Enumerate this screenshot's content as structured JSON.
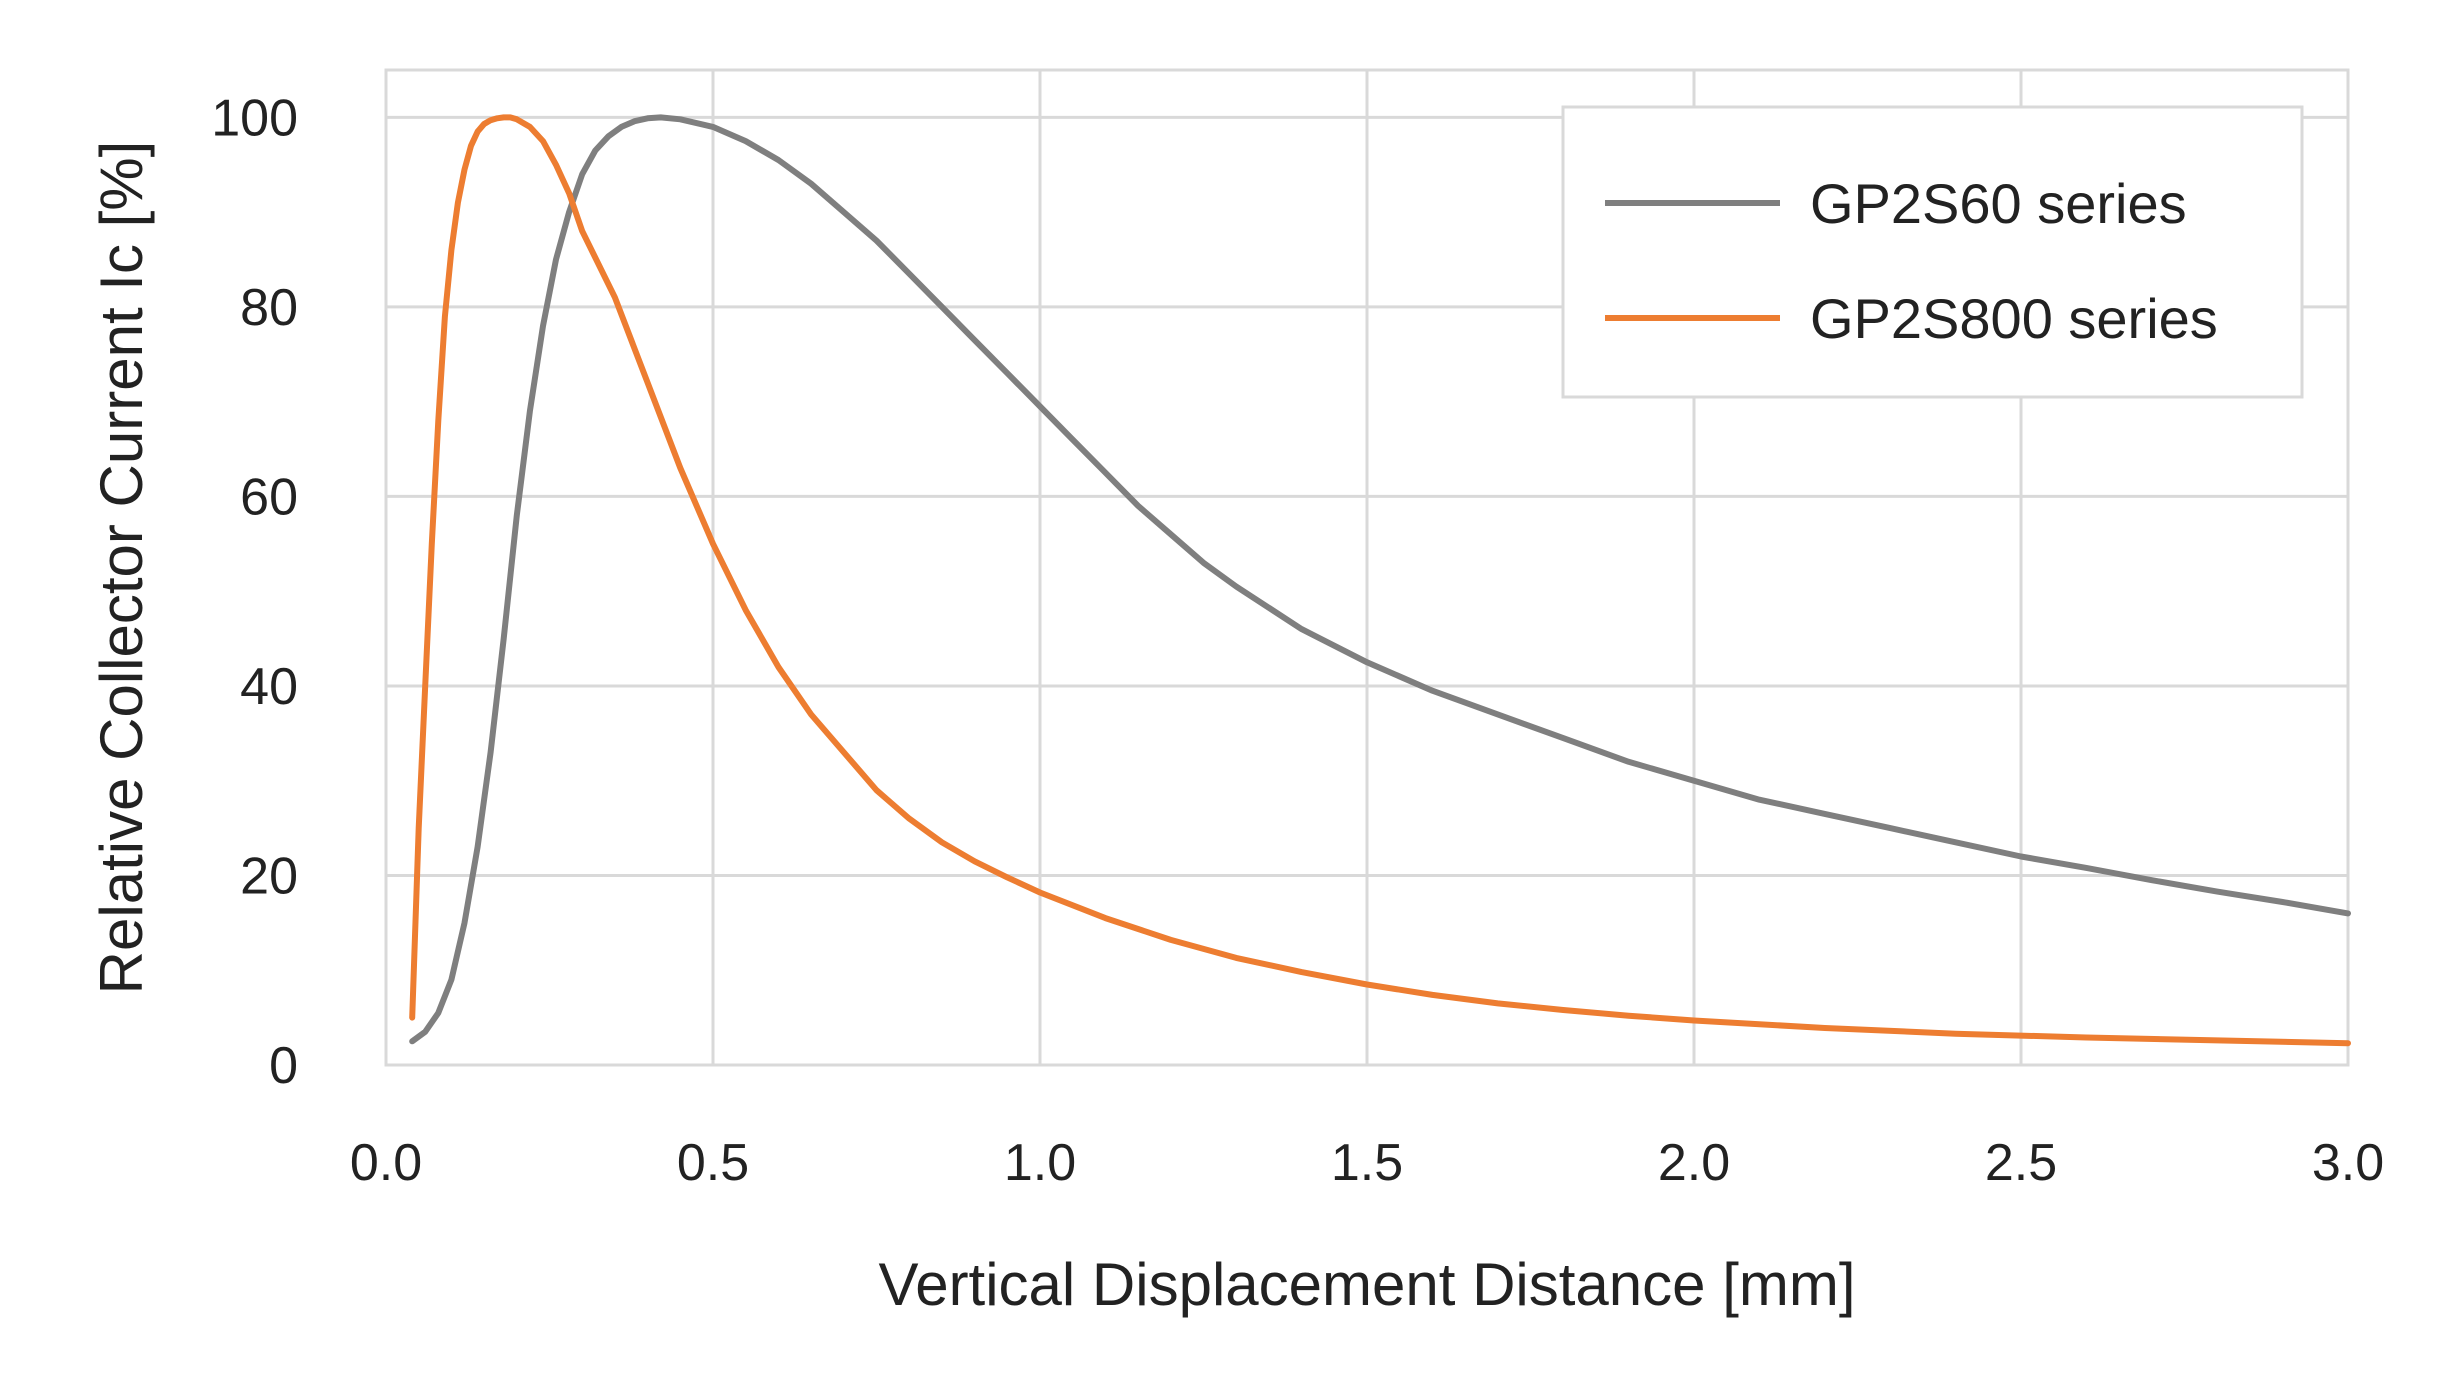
{
  "chart_data": {
    "type": "line",
    "title": "",
    "xlabel": "Vertical Displacement Distance [mm]",
    "ylabel": "Relative Collector Current Ic [%]",
    "xlim": [
      0.0,
      3.0
    ],
    "ylim": [
      0,
      105
    ],
    "x_ticks": [
      "0.0",
      "0.5",
      "1.0",
      "1.5",
      "2.0",
      "2.5",
      "3.0"
    ],
    "y_ticks": [
      "0",
      "20",
      "40",
      "60",
      "80",
      "100"
    ],
    "grid": true,
    "legend_position": "top-right",
    "series": [
      {
        "name": "GP2S60 series",
        "color": "#7f7f7f",
        "x": [
          0.04,
          0.06,
          0.08,
          0.1,
          0.12,
          0.14,
          0.16,
          0.18,
          0.2,
          0.22,
          0.24,
          0.26,
          0.28,
          0.3,
          0.32,
          0.34,
          0.36,
          0.38,
          0.4,
          0.42,
          0.45,
          0.5,
          0.55,
          0.6,
          0.65,
          0.7,
          0.75,
          0.8,
          0.85,
          0.9,
          0.95,
          1.0,
          1.05,
          1.1,
          1.15,
          1.2,
          1.25,
          1.3,
          1.4,
          1.5,
          1.6,
          1.7,
          1.8,
          1.9,
          2.0,
          2.1,
          2.2,
          2.3,
          2.4,
          2.5,
          2.6,
          2.7,
          2.8,
          2.9,
          3.0
        ],
        "values": [
          2.5,
          3.5,
          5.5,
          9,
          15,
          23,
          33,
          45,
          58,
          69,
          78,
          85,
          90,
          94,
          96.5,
          98,
          99,
          99.6,
          99.9,
          100,
          99.8,
          99,
          97.5,
          95.5,
          93,
          90,
          87,
          83.5,
          80,
          76.5,
          73,
          69.5,
          66,
          62.5,
          59,
          56,
          53,
          50.5,
          46,
          42.5,
          39.5,
          37,
          34.5,
          32,
          30,
          28,
          26.5,
          25,
          23.5,
          22,
          20.8,
          19.5,
          18.3,
          17.2,
          16
        ]
      },
      {
        "name": "GP2S800 series",
        "color": "#ed7d31",
        "x": [
          0.04,
          0.05,
          0.06,
          0.07,
          0.08,
          0.09,
          0.1,
          0.11,
          0.12,
          0.13,
          0.14,
          0.15,
          0.16,
          0.17,
          0.18,
          0.19,
          0.2,
          0.22,
          0.24,
          0.26,
          0.28,
          0.3,
          0.35,
          0.4,
          0.45,
          0.5,
          0.55,
          0.6,
          0.65,
          0.7,
          0.75,
          0.8,
          0.85,
          0.9,
          0.95,
          1.0,
          1.1,
          1.2,
          1.3,
          1.4,
          1.5,
          1.6,
          1.7,
          1.8,
          1.9,
          2.0,
          2.2,
          2.4,
          2.6,
          2.8,
          3.0
        ],
        "values": [
          5,
          25,
          40,
          55,
          68,
          79,
          86,
          91,
          94.5,
          97,
          98.5,
          99.3,
          99.7,
          99.9,
          100,
          100,
          99.8,
          99,
          97.5,
          95,
          92,
          88,
          81,
          72,
          63,
          55,
          48,
          42,
          37,
          33,
          29,
          26,
          23.5,
          21.5,
          19.8,
          18.2,
          15.5,
          13.2,
          11.3,
          9.8,
          8.5,
          7.4,
          6.5,
          5.8,
          5.2,
          4.7,
          3.9,
          3.3,
          2.9,
          2.6,
          2.3
        ]
      }
    ]
  }
}
